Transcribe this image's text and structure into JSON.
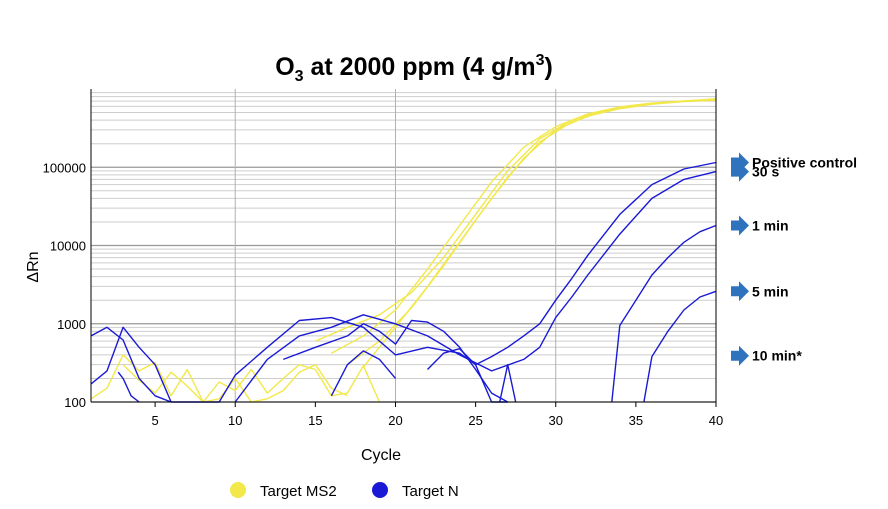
{
  "chart_data": {
    "type": "line",
    "title": {
      "main": "O",
      "sub": "3",
      "mid": " at 2000 ppm (4 g/m",
      "sup": "3",
      "end": ")"
    },
    "xlabel": "Cycle",
    "ylabel": "ΔRn",
    "xlim": [
      1,
      40
    ],
    "ylim": [
      100,
      1000000
    ],
    "yscale": "log",
    "grid": true,
    "xticks": [
      5,
      10,
      15,
      20,
      25,
      30,
      35,
      40
    ],
    "yticks": [
      100,
      1000,
      10000,
      100000
    ],
    "ytick_labels": [
      "100",
      "1000",
      "10000",
      "100000"
    ],
    "legend_position": "bottom",
    "legend": [
      {
        "name": "Target MS2",
        "color": "#f2e84a"
      },
      {
        "name": "Target N",
        "color": "#1a1ad6"
      }
    ],
    "annotations": [
      {
        "text": "Positive control",
        "y": 115000
      },
      {
        "text": "30 s",
        "y": 88000
      },
      {
        "text": "1 min",
        "y": 18000
      },
      {
        "text": "5 min",
        "y": 2600
      },
      {
        "text": "10 min*",
        "y": 390
      }
    ],
    "annotation_color": "#2f73bf",
    "series": [
      {
        "group": "Target MS2",
        "color": "#f2e84a",
        "x": [
          16,
          18,
          20,
          22,
          24,
          26,
          28,
          30,
          32,
          34,
          36,
          38,
          40
        ],
        "y": [
          420,
          700,
          1500,
          5000,
          18000,
          65000,
          180000,
          330000,
          480000,
          590000,
          660000,
          700000,
          730000
        ]
      },
      {
        "group": "Target MS2",
        "color": "#f2e84a",
        "x": [
          17,
          19,
          21,
          23,
          25,
          27,
          29,
          31,
          33,
          35,
          37,
          40
        ],
        "y": [
          300,
          600,
          1600,
          5500,
          21000,
          75000,
          210000,
          380000,
          520000,
          620000,
          680000,
          740000
        ]
      },
      {
        "group": "Target MS2",
        "color": "#f2e84a",
        "x": [
          18,
          20,
          22,
          24,
          26,
          28,
          30,
          32,
          34,
          36,
          38,
          40
        ],
        "y": [
          280,
          900,
          3000,
          11000,
          40000,
          130000,
          300000,
          450000,
          560000,
          640000,
          690000,
          720000
        ]
      },
      {
        "group": "Target MS2",
        "color": "#f2e84a",
        "x": [
          15,
          17,
          19,
          21,
          23,
          25,
          27,
          29,
          31,
          33,
          35,
          37,
          40
        ],
        "y": [
          600,
          900,
          1300,
          2500,
          7000,
          25000,
          90000,
          230000,
          400000,
          530000,
          620000,
          680000,
          750000
        ]
      },
      {
        "group": "Target MS2",
        "color": "#f2e84a",
        "x": [
          1,
          2,
          3,
          4,
          5,
          6,
          7,
          8,
          9,
          10,
          11,
          12,
          13,
          14,
          15,
          16,
          17
        ],
        "y": [
          110,
          150,
          400,
          250,
          320,
          120,
          260,
          100,
          110,
          200,
          100,
          110,
          140,
          240,
          300,
          150,
          120
        ]
      },
      {
        "group": "Target MS2",
        "color": "#f2e84a",
        "x": [
          3,
          4,
          5,
          6,
          7,
          8,
          9,
          10,
          11,
          12,
          13,
          14,
          15,
          16,
          17,
          18,
          19
        ],
        "y": [
          300,
          190,
          130,
          240,
          160,
          100,
          180,
          140,
          260,
          130,
          200,
          300,
          260,
          120,
          130,
          290,
          100
        ]
      },
      {
        "group": "Target N",
        "color": "#1a1ad6",
        "x": [
          1,
          2,
          3,
          4,
          5,
          6,
          7,
          8,
          9,
          10,
          12,
          14,
          16,
          18,
          20,
          22,
          24,
          25,
          26,
          27,
          28,
          29,
          30,
          31,
          32,
          34,
          36,
          38,
          40
        ],
        "y": [
          700,
          900,
          620,
          200,
          120,
          100,
          100,
          100,
          100,
          220,
          500,
          1100,
          1200,
          900,
          400,
          500,
          420,
          300,
          380,
          500,
          700,
          1000,
          2000,
          3800,
          7500,
          25000,
          60000,
          95000,
          115000
        ]
      },
      {
        "group": "Target N",
        "color": "#1a1ad6",
        "x": [
          10,
          12,
          14,
          16,
          18,
          20,
          22,
          24,
          26,
          28,
          29,
          30,
          31,
          32,
          34,
          36,
          38,
          40
        ],
        "y": [
          100,
          350,
          700,
          900,
          1300,
          1000,
          700,
          400,
          250,
          350,
          500,
          1200,
          2200,
          4200,
          14000,
          40000,
          70000,
          88000
        ]
      },
      {
        "group": "Target N",
        "color": "#1a1ad6",
        "x": [
          1,
          2,
          3,
          4,
          5,
          6
        ],
        "y": [
          170,
          250,
          900,
          500,
          300,
          100
        ]
      },
      {
        "group": "Target N",
        "color": "#1a1ad6",
        "x": [
          2.7,
          3,
          3.5,
          4
        ],
        "y": [
          240,
          200,
          120,
          100
        ]
      },
      {
        "group": "Target N",
        "color": "#1a1ad6",
        "x": [
          13,
          15,
          17,
          18,
          19,
          20,
          21,
          22,
          23,
          24,
          25,
          26,
          27
        ],
        "y": [
          350,
          500,
          700,
          1000,
          800,
          550,
          1100,
          1050,
          800,
          500,
          260,
          130,
          100
        ]
      },
      {
        "group": "Target N",
        "color": "#1a1ad6",
        "x": [
          16,
          17,
          18,
          19,
          20
        ],
        "y": [
          120,
          300,
          450,
          350,
          200
        ]
      },
      {
        "group": "Target N",
        "color": "#1a1ad6",
        "x": [
          22,
          23,
          24,
          25,
          26,
          27
        ],
        "y": [
          260,
          420,
          480,
          300,
          100,
          100
        ]
      },
      {
        "group": "Target N",
        "color": "#1a1ad6",
        "x": [
          26.5,
          27,
          27.5
        ],
        "y": [
          100,
          300,
          100
        ]
      },
      {
        "group": "Target N",
        "color": "#1a1ad6",
        "x": [
          33.5,
          34,
          35,
          36,
          37,
          38,
          39,
          40
        ],
        "y": [
          100,
          950,
          2000,
          4200,
          7000,
          11000,
          15000,
          18000
        ]
      },
      {
        "group": "Target N",
        "color": "#1a1ad6",
        "x": [
          35.5,
          36,
          37,
          38,
          39,
          40
        ],
        "y": [
          100,
          380,
          800,
          1500,
          2200,
          2600
        ]
      }
    ]
  }
}
